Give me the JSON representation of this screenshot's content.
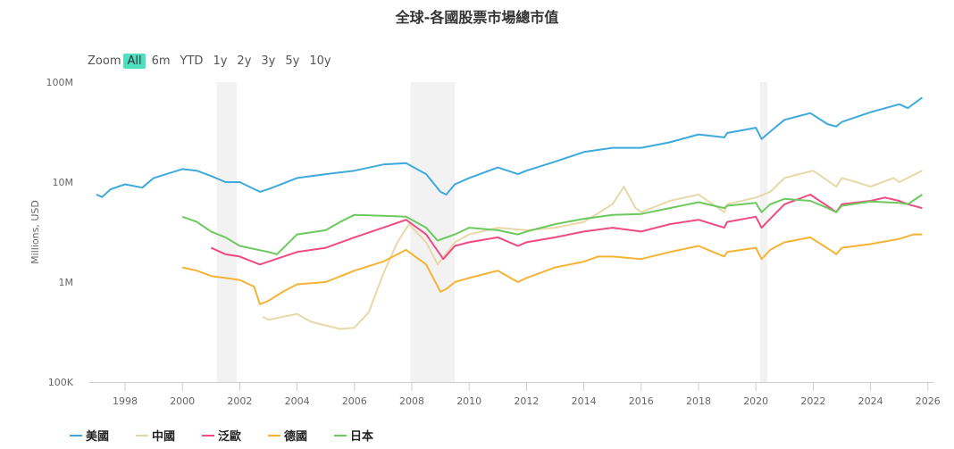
{
  "chart_data": {
    "type": "line",
    "title": "全球-各國股票市場總市值",
    "ylabel": "Millions, USD",
    "yscale": "log",
    "ylim": [
      0.1,
      100
    ],
    "xlim": [
      1996.9,
      2026.1
    ],
    "yticks": [
      {
        "v": 100,
        "label": "100M"
      },
      {
        "v": 10,
        "label": "10M"
      },
      {
        "v": 1,
        "label": "1M"
      },
      {
        "v": 0.1,
        "label": "100K"
      }
    ],
    "xticks": [
      "1998",
      "2000",
      "2002",
      "2004",
      "2006",
      "2008",
      "2010",
      "2012",
      "2014",
      "2016",
      "2018",
      "2020",
      "2022",
      "2024",
      "2026"
    ],
    "shaded_periods": [
      [
        2001.2,
        2001.9
      ],
      [
        2007.95,
        2009.5
      ],
      [
        2020.15,
        2020.4
      ]
    ],
    "legend_position": "bottom-left",
    "series": [
      {
        "name": "美國",
        "color": "#3daadb",
        "points": [
          [
            1997,
            7.5
          ],
          [
            1997.2,
            7.1
          ],
          [
            1997.5,
            8.5
          ],
          [
            1998,
            9.5
          ],
          [
            1998.6,
            8.8
          ],
          [
            1999,
            11
          ],
          [
            2000,
            13.5
          ],
          [
            2000.5,
            13
          ],
          [
            2001,
            11.5
          ],
          [
            2001.5,
            10
          ],
          [
            2002,
            10
          ],
          [
            2002.7,
            8
          ],
          [
            2003,
            8.5
          ],
          [
            2004,
            11
          ],
          [
            2005,
            12
          ],
          [
            2006,
            13
          ],
          [
            2007,
            15
          ],
          [
            2007.8,
            15.5
          ],
          [
            2008.5,
            12
          ],
          [
            2009.0,
            8
          ],
          [
            2009.2,
            7.5
          ],
          [
            2009.5,
            9.5
          ],
          [
            2010,
            11
          ],
          [
            2011,
            14
          ],
          [
            2011.7,
            12
          ],
          [
            2012,
            13
          ],
          [
            2013,
            16
          ],
          [
            2014,
            20
          ],
          [
            2015,
            22
          ],
          [
            2016,
            22
          ],
          [
            2017,
            25
          ],
          [
            2018,
            30
          ],
          [
            2018.9,
            28
          ],
          [
            2019,
            31
          ],
          [
            2020,
            35
          ],
          [
            2020.2,
            27
          ],
          [
            2020.5,
            32
          ],
          [
            2021,
            42
          ],
          [
            2021.9,
            49
          ],
          [
            2022.5,
            38
          ],
          [
            2022.8,
            36
          ],
          [
            2023,
            40
          ],
          [
            2024,
            50
          ],
          [
            2025,
            60
          ],
          [
            2025.3,
            55
          ],
          [
            2025.8,
            70
          ]
        ]
      },
      {
        "name": "中國",
        "color": "#e8d8a8",
        "points": [
          [
            2002.8,
            0.45
          ],
          [
            2003,
            0.42
          ],
          [
            2004,
            0.48
          ],
          [
            2004.5,
            0.4
          ],
          [
            2005.5,
            0.34
          ],
          [
            2006,
            0.35
          ],
          [
            2006.5,
            0.5
          ],
          [
            2007,
            1.2
          ],
          [
            2007.5,
            2.5
          ],
          [
            2007.9,
            3.8
          ],
          [
            2008.5,
            2.5
          ],
          [
            2008.9,
            1.5
          ],
          [
            2009.5,
            2.5
          ],
          [
            2010,
            3
          ],
          [
            2011,
            3.5
          ],
          [
            2012,
            3.3
          ],
          [
            2013,
            3.5
          ],
          [
            2014,
            4
          ],
          [
            2015,
            6
          ],
          [
            2015.4,
            9
          ],
          [
            2015.8,
            5.5
          ],
          [
            2016,
            5
          ],
          [
            2017,
            6.5
          ],
          [
            2018,
            7.5
          ],
          [
            2018.9,
            5
          ],
          [
            2019,
            6
          ],
          [
            2020,
            7
          ],
          [
            2020.5,
            8
          ],
          [
            2021,
            11
          ],
          [
            2021.5,
            12
          ],
          [
            2022,
            13
          ],
          [
            2022.8,
            9
          ],
          [
            2023,
            11
          ],
          [
            2023.5,
            10
          ],
          [
            2024,
            9
          ],
          [
            2024.8,
            11
          ],
          [
            2025,
            10
          ],
          [
            2025.8,
            13
          ]
        ]
      },
      {
        "name": "泛歐",
        "color": "#ee4b80",
        "points": [
          [
            2001,
            2.2
          ],
          [
            2001.5,
            1.9
          ],
          [
            2002,
            1.8
          ],
          [
            2002.7,
            1.5
          ],
          [
            2003,
            1.6
          ],
          [
            2004,
            2
          ],
          [
            2005,
            2.2
          ],
          [
            2006,
            2.8
          ],
          [
            2007,
            3.5
          ],
          [
            2007.8,
            4.2
          ],
          [
            2008.5,
            3
          ],
          [
            2009.1,
            1.7
          ],
          [
            2009.5,
            2.3
          ],
          [
            2010,
            2.5
          ],
          [
            2011,
            2.8
          ],
          [
            2011.7,
            2.3
          ],
          [
            2012,
            2.5
          ],
          [
            2013,
            2.8
          ],
          [
            2014,
            3.2
          ],
          [
            2015,
            3.5
          ],
          [
            2016,
            3.2
          ],
          [
            2017,
            3.8
          ],
          [
            2018,
            4.2
          ],
          [
            2018.9,
            3.5
          ],
          [
            2019,
            4
          ],
          [
            2020,
            4.5
          ],
          [
            2020.2,
            3.5
          ],
          [
            2020.5,
            4.3
          ],
          [
            2021,
            6
          ],
          [
            2021.9,
            7.5
          ],
          [
            2022.6,
            5.5
          ],
          [
            2022.8,
            5
          ],
          [
            2023,
            6
          ],
          [
            2024,
            6.5
          ],
          [
            2024.5,
            7
          ],
          [
            2025,
            6.5
          ],
          [
            2025.3,
            6
          ],
          [
            2025.8,
            5.5
          ]
        ]
      },
      {
        "name": "德國",
        "color": "#f5b335",
        "points": [
          [
            2000,
            1.4
          ],
          [
            2000.5,
            1.3
          ],
          [
            2001,
            1.15
          ],
          [
            2002,
            1.05
          ],
          [
            2002.5,
            0.9
          ],
          [
            2002.7,
            0.6
          ],
          [
            2003,
            0.65
          ],
          [
            2003.5,
            0.8
          ],
          [
            2004,
            0.95
          ],
          [
            2005,
            1.0
          ],
          [
            2006,
            1.3
          ],
          [
            2007,
            1.6
          ],
          [
            2007.8,
            2.1
          ],
          [
            2008.5,
            1.5
          ],
          [
            2009.0,
            0.8
          ],
          [
            2009.2,
            0.85
          ],
          [
            2009.5,
            1.0
          ],
          [
            2010,
            1.1
          ],
          [
            2011,
            1.3
          ],
          [
            2011.7,
            1.0
          ],
          [
            2012,
            1.1
          ],
          [
            2013,
            1.4
          ],
          [
            2014,
            1.6
          ],
          [
            2014.5,
            1.8
          ],
          [
            2015,
            1.8
          ],
          [
            2016,
            1.7
          ],
          [
            2017,
            2.0
          ],
          [
            2018,
            2.3
          ],
          [
            2018.9,
            1.8
          ],
          [
            2019,
            2.0
          ],
          [
            2020,
            2.2
          ],
          [
            2020.2,
            1.7
          ],
          [
            2020.5,
            2.1
          ],
          [
            2021,
            2.5
          ],
          [
            2021.9,
            2.8
          ],
          [
            2022.7,
            2.0
          ],
          [
            2022.8,
            1.9
          ],
          [
            2023,
            2.2
          ],
          [
            2024,
            2.4
          ],
          [
            2025,
            2.7
          ],
          [
            2025.5,
            3.0
          ],
          [
            2025.8,
            3.0
          ]
        ]
      },
      {
        "name": "日本",
        "color": "#6cc95e",
        "points": [
          [
            2000,
            4.5
          ],
          [
            2000.5,
            4
          ],
          [
            2001,
            3.2
          ],
          [
            2001.5,
            2.8
          ],
          [
            2002,
            2.3
          ],
          [
            2003,
            2.0
          ],
          [
            2003.3,
            1.9
          ],
          [
            2004,
            3.0
          ],
          [
            2005,
            3.3
          ],
          [
            2005.5,
            4
          ],
          [
            2006,
            4.7
          ],
          [
            2007,
            4.6
          ],
          [
            2007.8,
            4.5
          ],
          [
            2008.5,
            3.5
          ],
          [
            2008.9,
            2.6
          ],
          [
            2009.5,
            3
          ],
          [
            2010,
            3.5
          ],
          [
            2011,
            3.3
          ],
          [
            2011.7,
            3
          ],
          [
            2012,
            3.2
          ],
          [
            2013,
            3.8
          ],
          [
            2014,
            4.3
          ],
          [
            2015,
            4.7
          ],
          [
            2016,
            4.8
          ],
          [
            2017,
            5.5
          ],
          [
            2018,
            6.3
          ],
          [
            2018.9,
            5.5
          ],
          [
            2019,
            5.8
          ],
          [
            2020,
            6.2
          ],
          [
            2020.2,
            5
          ],
          [
            2020.5,
            6
          ],
          [
            2021,
            6.8
          ],
          [
            2021.9,
            6.5
          ],
          [
            2022.5,
            5.5
          ],
          [
            2022.8,
            5
          ],
          [
            2023,
            5.8
          ],
          [
            2024,
            6.4
          ],
          [
            2025,
            6.2
          ],
          [
            2025.3,
            6
          ],
          [
            2025.8,
            7.5
          ]
        ]
      }
    ]
  },
  "range_selector": {
    "label": "Zoom",
    "buttons": [
      "All",
      "6m",
      "YTD",
      "1y",
      "2y",
      "3y",
      "5y",
      "10y"
    ],
    "active": "All"
  }
}
